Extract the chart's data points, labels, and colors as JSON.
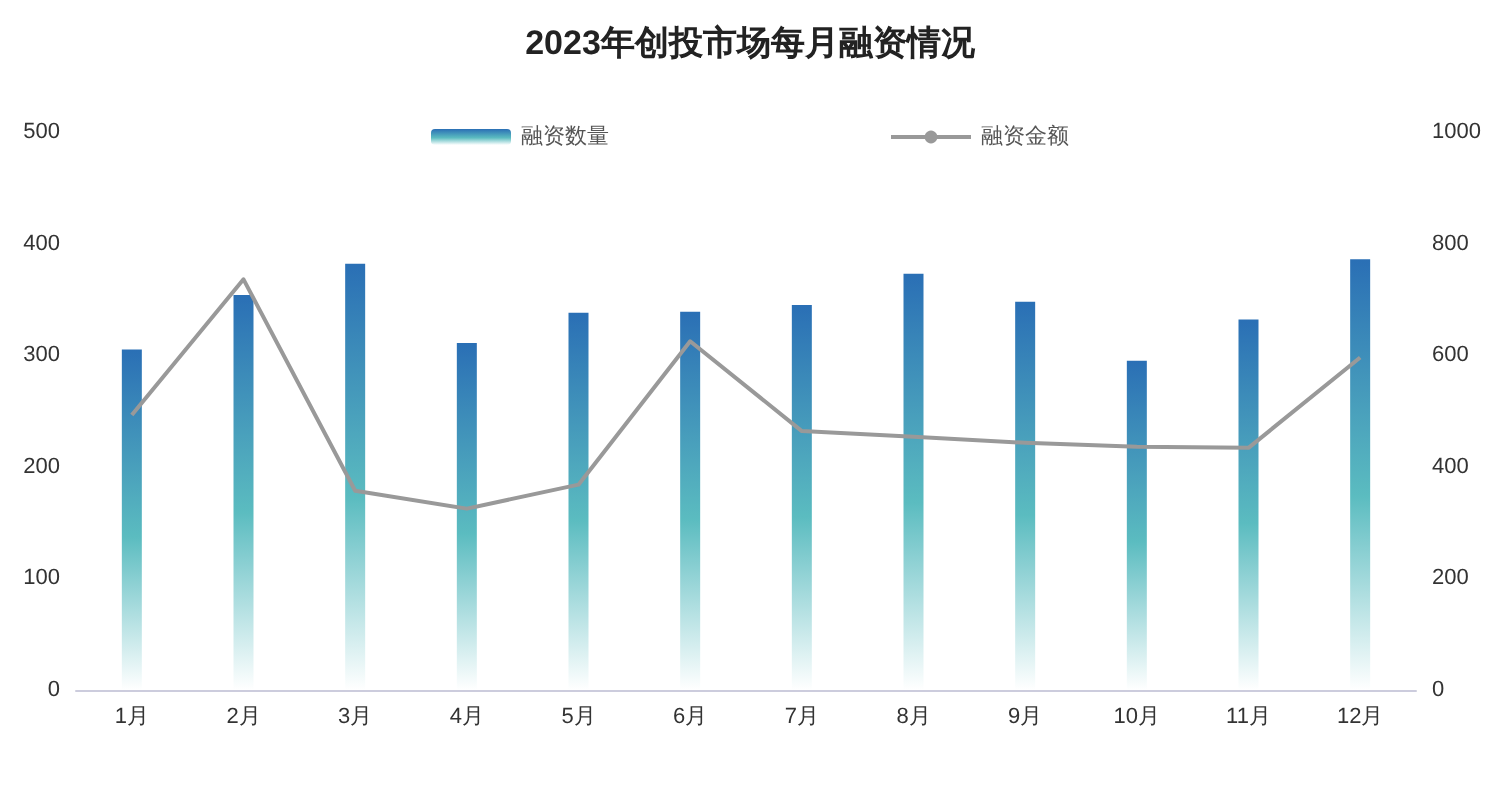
{
  "chart_data": {
    "type": "bar",
    "title": "2023年创投市场每月融资情况",
    "categories": [
      "1月",
      "2月",
      "3月",
      "4月",
      "5月",
      "6月",
      "7月",
      "8月",
      "9月",
      "10月",
      "11月",
      "12月"
    ],
    "series": [
      {
        "name": "融资数量",
        "color": "#2a6fb5",
        "values": [
          305,
          354,
          382,
          311,
          338,
          339,
          345,
          373,
          348,
          295,
          332,
          386
        ]
      },
      {
        "name": "融资金额",
        "type": "line",
        "axis": "y2",
        "color": "#999999",
        "values": [
          493,
          736,
          357,
          325,
          368,
          625,
          464,
          454,
          443,
          436,
          434,
          596
        ]
      }
    ],
    "ylim": [
      0,
      500
    ],
    "yticks": [
      0,
      100,
      200,
      300,
      400,
      500
    ],
    "y2lim": [
      0,
      1000
    ],
    "y2ticks": [
      0,
      200,
      400,
      600,
      800,
      1000
    ],
    "grid": false,
    "legend": "top",
    "marker": "none",
    "line_style": "solid"
  }
}
